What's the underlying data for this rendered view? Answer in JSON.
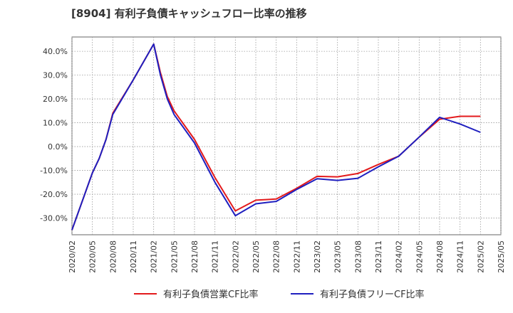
{
  "chart_data": {
    "type": "line",
    "title": "[8904]  有利子負債キャッシュフロー比率の推移",
    "xlabel": "",
    "ylabel": "",
    "x_ticks": [
      "2020/02",
      "2020/05",
      "2020/08",
      "2020/11",
      "2021/02",
      "2021/05",
      "2021/08",
      "2021/11",
      "2022/02",
      "2022/05",
      "2022/08",
      "2022/11",
      "2023/02",
      "2023/05",
      "2023/08",
      "2023/11",
      "2024/02",
      "2024/05",
      "2024/08",
      "2024/11",
      "2025/02",
      "2025/05"
    ],
    "y_ticks": [
      "-30.0%",
      "-20.0%",
      "-10.0%",
      "0.0%",
      "10.0%",
      "20.0%",
      "30.0%",
      "40.0%"
    ],
    "y_tick_values": [
      -30,
      -20,
      -10,
      0,
      10,
      20,
      30,
      40
    ],
    "ylim": [
      -37,
      46
    ],
    "grid": true,
    "legend_position": "bottom",
    "series": [
      {
        "name": "有利子負債営業CF比率",
        "color": "#e31a1c",
        "points": [
          [
            "2020/02",
            -35.0
          ],
          [
            "2020/05",
            -11.0
          ],
          [
            "2020/06",
            -5.0
          ],
          [
            "2020/07",
            3.0
          ],
          [
            "2020/08",
            14.0
          ],
          [
            "2020/11",
            28.0
          ],
          [
            "2021/02",
            43.0
          ],
          [
            "2021/03",
            31.0
          ],
          [
            "2021/04",
            21.0
          ],
          [
            "2021/05",
            15.0
          ],
          [
            "2021/08",
            3.0
          ],
          [
            "2021/11",
            -13.0
          ],
          [
            "2022/02",
            -27.0
          ],
          [
            "2022/05",
            -22.5
          ],
          [
            "2022/08",
            -22.0
          ],
          [
            "2022/11",
            -17.5
          ],
          [
            "2023/02",
            -12.5
          ],
          [
            "2023/05",
            -12.7
          ],
          [
            "2023/08",
            -11.3
          ],
          [
            "2023/11",
            -7.5
          ],
          [
            "2024/02",
            -4.0
          ],
          [
            "2024/05",
            4.0
          ],
          [
            "2024/08",
            11.5
          ],
          [
            "2024/11",
            12.7
          ],
          [
            "2025/02",
            12.7
          ]
        ]
      },
      {
        "name": "有利子負債フリーCF比率",
        "color": "#1f1fbf",
        "points": [
          [
            "2020/02",
            -35.0
          ],
          [
            "2020/05",
            -11.0
          ],
          [
            "2020/06",
            -5.0
          ],
          [
            "2020/07",
            3.0
          ],
          [
            "2020/08",
            13.5
          ],
          [
            "2020/11",
            28.0
          ],
          [
            "2021/02",
            43.0
          ],
          [
            "2021/03",
            30.0
          ],
          [
            "2021/04",
            20.0
          ],
          [
            "2021/05",
            13.5
          ],
          [
            "2021/08",
            1.5
          ],
          [
            "2021/11",
            -15.0
          ],
          [
            "2022/02",
            -29.0
          ],
          [
            "2022/05",
            -24.0
          ],
          [
            "2022/08",
            -23.0
          ],
          [
            "2022/11",
            -18.0
          ],
          [
            "2023/02",
            -13.5
          ],
          [
            "2023/05",
            -14.2
          ],
          [
            "2023/08",
            -13.3
          ],
          [
            "2023/11",
            -8.5
          ],
          [
            "2024/02",
            -4.0
          ],
          [
            "2024/05",
            4.0
          ],
          [
            "2024/08",
            12.3
          ],
          [
            "2024/11",
            9.5
          ],
          [
            "2025/02",
            6.0
          ]
        ]
      }
    ]
  }
}
